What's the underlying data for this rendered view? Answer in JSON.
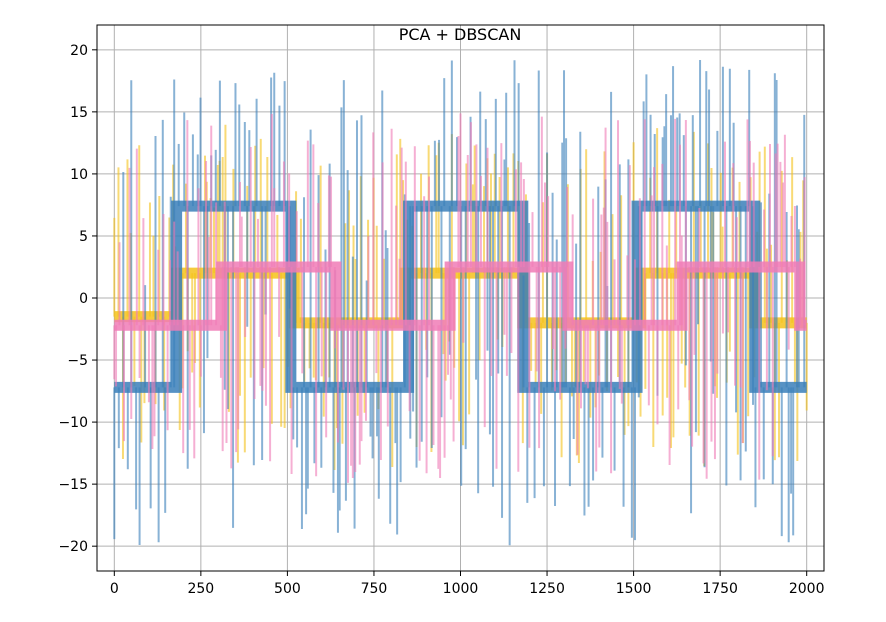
{
  "chart_data": {
    "type": "line",
    "title": "PCA + DBSCAN",
    "xlabel": "",
    "ylabel": "",
    "xlim": [
      -50,
      2050
    ],
    "ylim": [
      -22,
      22
    ],
    "xticks": [
      0,
      250,
      500,
      750,
      1000,
      1250,
      1500,
      1750,
      2000
    ],
    "xtick_labels": [
      "0",
      "250",
      "500",
      "750",
      "1000",
      "1250",
      "1500",
      "1750",
      "2000"
    ],
    "yticks": [
      -20,
      -15,
      -10,
      -5,
      0,
      5,
      10,
      15,
      20
    ],
    "ytick_labels": [
      "−20",
      "−15",
      "−10",
      "−5",
      "0",
      "5",
      "10",
      "15",
      "20"
    ],
    "grid": true,
    "legend": "none",
    "series": [
      {
        "color": "#f5c21b",
        "base": [
          [
            0,
            180,
            -1.5
          ],
          [
            180,
            520,
            2.0
          ],
          [
            520,
            840,
            -2.0
          ],
          [
            840,
            1180,
            2.0
          ],
          [
            1180,
            1520,
            -2.0
          ],
          [
            1520,
            1850,
            2.0
          ],
          [
            1850,
            2000,
            -2.0
          ]
        ],
        "spike_range": [
          -14,
          14
        ]
      },
      {
        "color": "#3a7fba",
        "base": [
          [
            0,
            180,
            -7.2
          ],
          [
            180,
            510,
            7.4
          ],
          [
            510,
            850,
            -7.2
          ],
          [
            850,
            1180,
            7.4
          ],
          [
            1180,
            1510,
            -7.2
          ],
          [
            1510,
            1850,
            7.4
          ],
          [
            1850,
            2000,
            -7.2
          ]
        ],
        "spike_range": [
          -20,
          19.5
        ]
      },
      {
        "color": "#f07bb6",
        "base": [
          [
            0,
            310,
            -2.2
          ],
          [
            310,
            640,
            2.5
          ],
          [
            640,
            970,
            -2.2
          ],
          [
            970,
            1310,
            2.5
          ],
          [
            1310,
            1640,
            -2.2
          ],
          [
            1640,
            1980,
            2.5
          ],
          [
            1980,
            2000,
            -2.2
          ]
        ],
        "spike_range": [
          -15,
          15
        ]
      }
    ]
  }
}
